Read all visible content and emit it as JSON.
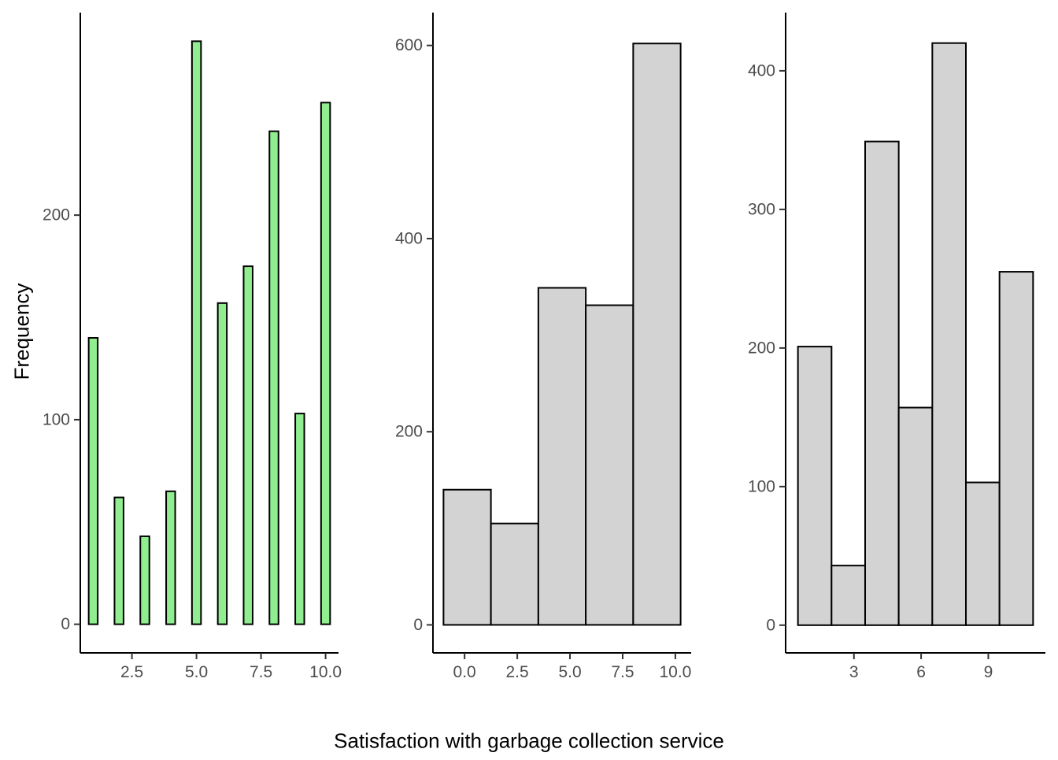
{
  "figure": {
    "xlabel": "Satisfaction with garbage collection service",
    "ylabel": "Frequency"
  },
  "chart_data": [
    {
      "type": "bar",
      "fill": "#90ee90",
      "x": [
        1,
        2,
        3,
        4,
        5,
        6,
        7,
        8,
        9,
        10
      ],
      "values": [
        140,
        62,
        43,
        65,
        285,
        157,
        175,
        241,
        103,
        255
      ],
      "xlim": [
        0.5,
        10.5
      ],
      "ylim": [
        -14,
        299
      ],
      "xticks": [
        2.5,
        5.0,
        7.5,
        10.0
      ],
      "xtick_labels": [
        "2.5",
        "5.0",
        "7.5",
        "10.0"
      ],
      "yticks": [
        0,
        100,
        200
      ],
      "ytick_labels": [
        "0",
        "100",
        "200"
      ]
    },
    {
      "type": "bar",
      "fill": "#d3d3d3",
      "bins": [
        [
          -1.0,
          1.25
        ],
        [
          1.25,
          3.5
        ],
        [
          3.5,
          5.75
        ],
        [
          5.75,
          8.0
        ],
        [
          8.0,
          10.25
        ]
      ],
      "values": [
        140,
        105,
        349,
        331,
        602
      ],
      "xlim": [
        -1.5,
        10.75
      ],
      "ylim": [
        -29,
        634
      ],
      "xticks": [
        0.0,
        2.5,
        5.0,
        7.5,
        10.0
      ],
      "xtick_labels": [
        "0.0",
        "2.5",
        "5.0",
        "7.5",
        "10.0"
      ],
      "yticks": [
        0,
        200,
        400,
        600
      ],
      "ytick_labels": [
        "0",
        "200",
        "400",
        "600"
      ]
    },
    {
      "type": "bar",
      "fill": "#d3d3d3",
      "bins": [
        [
          0.5,
          2.0
        ],
        [
          2.0,
          3.5
        ],
        [
          3.5,
          5.0
        ],
        [
          5.0,
          6.5
        ],
        [
          6.5,
          8.0
        ],
        [
          8.0,
          9.5
        ],
        [
          9.5,
          11.0
        ]
      ],
      "values": [
        201,
        43,
        349,
        157,
        420,
        103,
        255
      ],
      "xlim": [
        -0.05,
        11.55
      ],
      "ylim": [
        -20,
        442
      ],
      "xticks": [
        3,
        6,
        9
      ],
      "xtick_labels": [
        "3",
        "6",
        "9"
      ],
      "yticks": [
        0,
        100,
        200,
        300,
        400
      ],
      "ytick_labels": [
        "0",
        "100",
        "200",
        "300",
        "400"
      ]
    }
  ]
}
